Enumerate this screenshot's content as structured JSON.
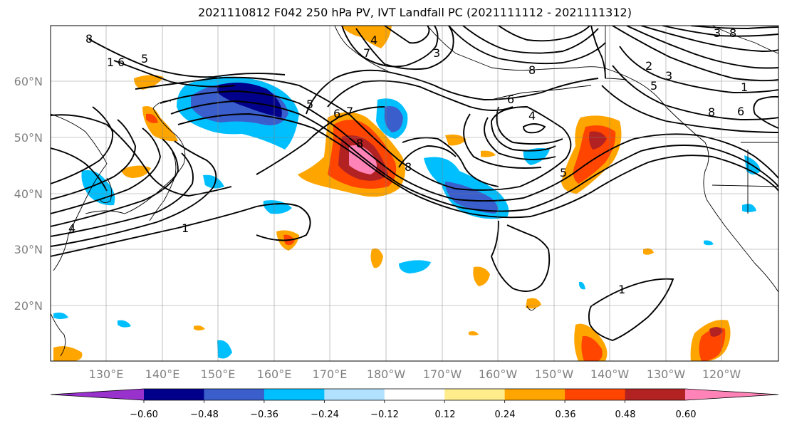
{
  "title": "2021110812 F042 250 hPa PV, IVT Landfall PC (2021111112 - 2021111312)",
  "map": {
    "lat_labels": [
      "60°N",
      "50°N",
      "40°N",
      "30°N",
      "20°N"
    ],
    "lon_labels": [
      "130°E",
      "140°E",
      "150°E",
      "160°E",
      "170°E",
      "180°W",
      "170°W",
      "160°W",
      "150°W",
      "140°W",
      "130°W",
      "120°W"
    ],
    "contour_labels": [
      "8",
      "1",
      "6",
      "5",
      "5",
      "6",
      "7",
      "8",
      "5",
      "4",
      "1",
      "8",
      "7",
      "4",
      "8",
      "6",
      "3",
      "2",
      "3",
      "5",
      "1",
      "8",
      "6",
      "4",
      "1",
      "8",
      "3"
    ]
  },
  "colorbar": {
    "colors": [
      "#9932cc",
      "#00008b",
      "#3a5fcd",
      "#00bfff",
      "#b0e2ff",
      "#ffffff",
      "#ffec8b",
      "#ffa500",
      "#ff4500",
      "#b22222",
      "#ff83b7"
    ],
    "tick_labels": [
      "−0.60",
      "−0.48",
      "−0.36",
      "−0.24",
      "−0.12",
      "0.12",
      "0.24",
      "0.36",
      "0.48",
      "0.60"
    ]
  }
}
